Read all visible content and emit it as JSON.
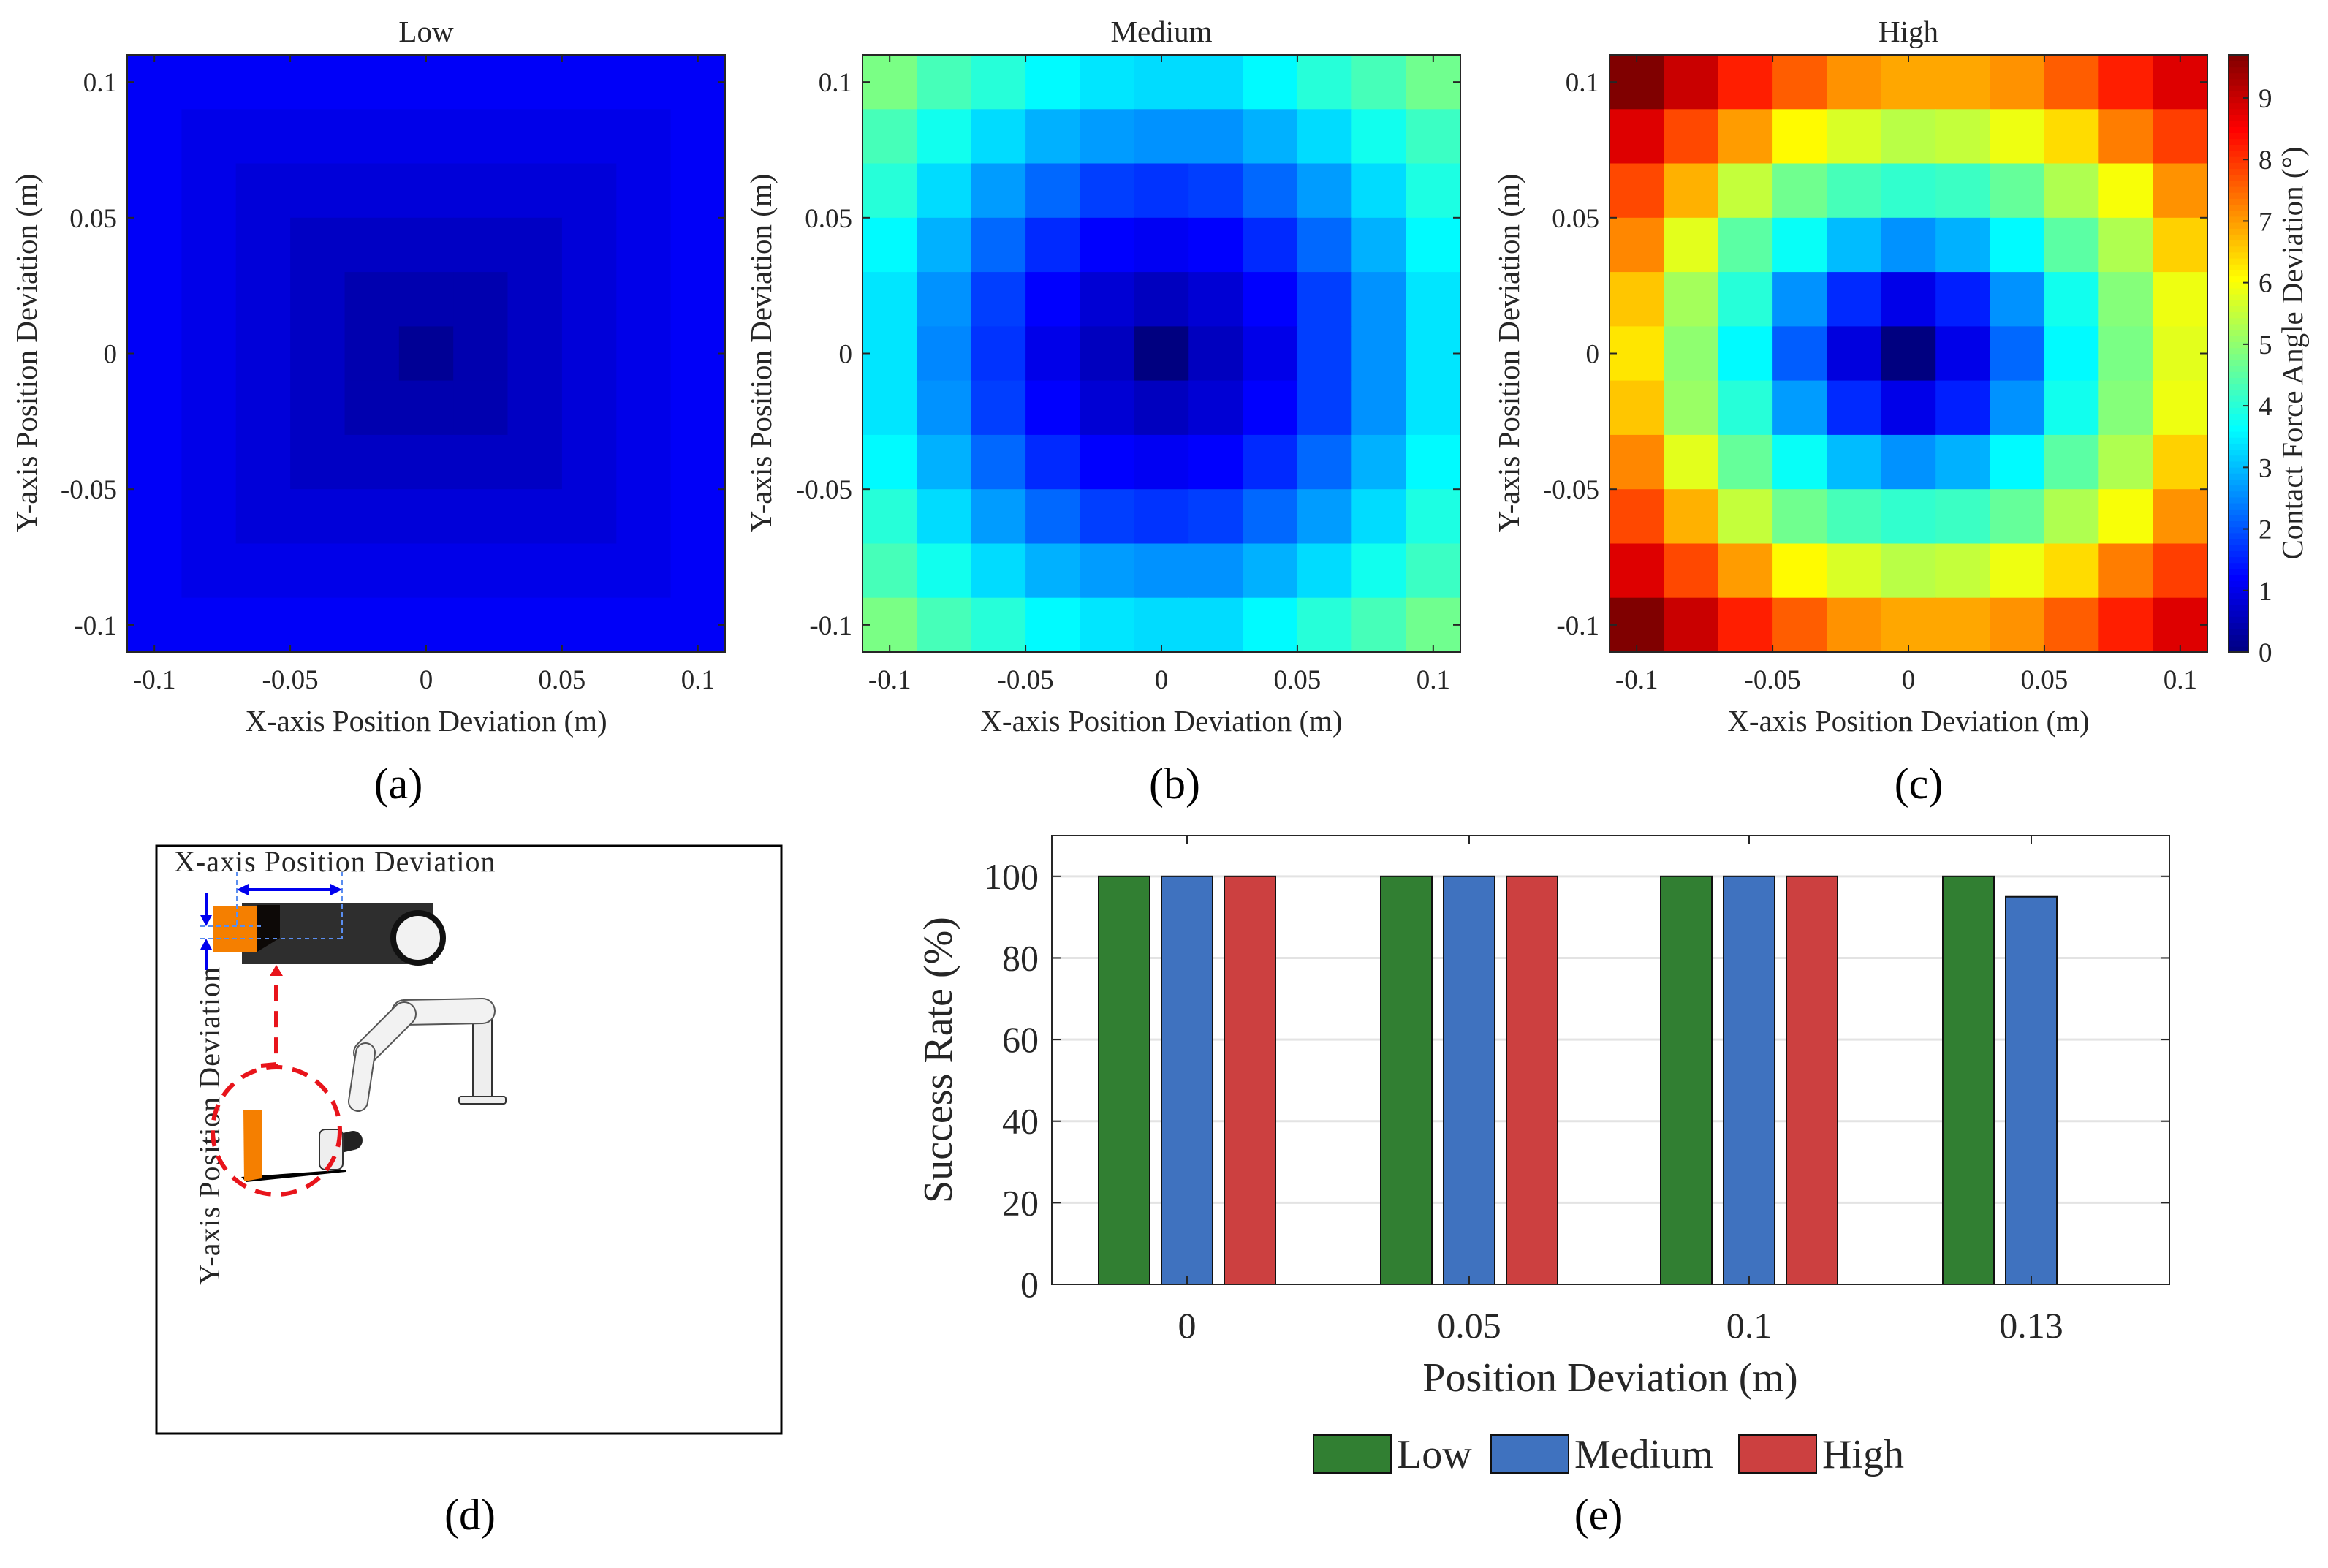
{
  "chart_data": [
    {
      "type": "heatmap",
      "panel_label": "(a)",
      "title": "Low",
      "xlabel": "X-axis Position Deviation (m)",
      "ylabel": "Y-axis Position Deviation (m)",
      "x": [
        -0.1,
        -0.08,
        -0.06,
        -0.04,
        -0.02,
        0,
        0.02,
        0.04,
        0.06,
        0.08,
        0.1
      ],
      "y": [
        0.1,
        0.08,
        0.06,
        0.04,
        0.02,
        0,
        -0.02,
        -0.04,
        -0.06,
        -0.08,
        -0.1
      ],
      "xticks": [
        "-0.1",
        "-0.05",
        "0",
        "0.05",
        "0.1"
      ],
      "yticks": [
        "0.1",
        "0.05",
        "0",
        "-0.05",
        "-0.1"
      ],
      "xlim": [
        -0.11,
        0.11
      ],
      "ylim": [
        -0.11,
        0.11
      ],
      "colormap": "jet",
      "clim": [
        0,
        9.7
      ],
      "values": [
        [
          1.15,
          1.15,
          1.15,
          1.15,
          1.15,
          1.15,
          1.15,
          1.15,
          1.15,
          1.15,
          1.15
        ],
        [
          1.15,
          1.0,
          1.0,
          1.0,
          1.0,
          1.0,
          1.0,
          1.0,
          1.0,
          1.0,
          1.15
        ],
        [
          1.15,
          1.0,
          0.85,
          0.85,
          0.85,
          0.85,
          0.85,
          0.85,
          0.85,
          1.0,
          1.15
        ],
        [
          1.15,
          1.0,
          0.85,
          0.65,
          0.65,
          0.65,
          0.65,
          0.65,
          0.85,
          1.0,
          1.15
        ],
        [
          1.15,
          1.0,
          0.85,
          0.65,
          0.45,
          0.45,
          0.45,
          0.65,
          0.85,
          1.0,
          1.15
        ],
        [
          1.15,
          1.0,
          0.85,
          0.65,
          0.45,
          0.2,
          0.45,
          0.65,
          0.85,
          1.0,
          1.15
        ],
        [
          1.15,
          1.0,
          0.85,
          0.65,
          0.45,
          0.45,
          0.45,
          0.65,
          0.85,
          1.0,
          1.15
        ],
        [
          1.15,
          1.0,
          0.85,
          0.65,
          0.65,
          0.65,
          0.65,
          0.65,
          0.85,
          1.0,
          1.15
        ],
        [
          1.15,
          1.0,
          0.85,
          0.85,
          0.85,
          0.85,
          0.85,
          0.85,
          0.85,
          1.0,
          1.15
        ],
        [
          1.15,
          1.0,
          1.0,
          1.0,
          1.0,
          1.0,
          1.0,
          1.0,
          1.0,
          1.0,
          1.15
        ],
        [
          1.15,
          1.15,
          1.15,
          1.15,
          1.15,
          1.15,
          1.15,
          1.15,
          1.15,
          1.15,
          1.15
        ]
      ]
    },
    {
      "type": "heatmap",
      "panel_label": "(b)",
      "title": "Medium",
      "xlabel": "X-axis Position Deviation (m)",
      "ylabel": "Y-axis Position Deviation (m)",
      "x": [
        -0.1,
        -0.08,
        -0.06,
        -0.04,
        -0.02,
        0,
        0.02,
        0.04,
        0.06,
        0.08,
        0.1
      ],
      "y": [
        0.1,
        0.08,
        0.06,
        0.04,
        0.02,
        0,
        -0.02,
        -0.04,
        -0.06,
        -0.08,
        -0.1
      ],
      "xticks": [
        "-0.1",
        "-0.05",
        "0",
        "0.05",
        "0.1"
      ],
      "yticks": [
        "0.1",
        "0.05",
        "0",
        "-0.05",
        "-0.1"
      ],
      "xlim": [
        -0.11,
        0.11
      ],
      "ylim": [
        -0.11,
        0.11
      ],
      "colormap": "jet",
      "clim": [
        0,
        9.7
      ],
      "values": [
        [
          4.8,
          4.3,
          4.0,
          3.6,
          3.4,
          3.3,
          3.3,
          3.6,
          4.0,
          4.3,
          4.7
        ],
        [
          4.3,
          3.8,
          3.3,
          2.9,
          2.7,
          2.6,
          2.6,
          2.9,
          3.3,
          3.8,
          4.2
        ],
        [
          4.0,
          3.3,
          2.7,
          2.2,
          1.8,
          1.7,
          1.8,
          2.2,
          2.7,
          3.3,
          3.9
        ],
        [
          3.6,
          2.9,
          2.2,
          1.6,
          1.2,
          1.1,
          1.2,
          1.6,
          2.2,
          2.9,
          3.6
        ],
        [
          3.4,
          2.6,
          1.8,
          1.2,
          0.8,
          0.6,
          0.8,
          1.2,
          1.8,
          2.6,
          3.4
        ],
        [
          3.4,
          2.5,
          1.7,
          1.0,
          0.6,
          0.0,
          0.6,
          1.0,
          1.8,
          2.6,
          3.4
        ],
        [
          3.4,
          2.6,
          1.8,
          1.2,
          0.8,
          0.6,
          0.8,
          1.2,
          1.8,
          2.6,
          3.4
        ],
        [
          3.6,
          2.9,
          2.2,
          1.6,
          1.2,
          1.1,
          1.2,
          1.6,
          2.2,
          2.9,
          3.6
        ],
        [
          4.0,
          3.3,
          2.7,
          2.2,
          1.8,
          1.7,
          1.8,
          2.2,
          2.7,
          3.3,
          3.9
        ],
        [
          4.3,
          3.8,
          3.3,
          2.9,
          2.7,
          2.6,
          2.6,
          2.9,
          3.3,
          3.8,
          4.2
        ],
        [
          4.8,
          4.3,
          4.0,
          3.6,
          3.4,
          3.3,
          3.3,
          3.6,
          4.0,
          4.3,
          4.7
        ]
      ]
    },
    {
      "type": "heatmap",
      "panel_label": "(c)",
      "title": "High",
      "xlabel": "X-axis Position Deviation (m)",
      "ylabel": "Y-axis Position Deviation (m)",
      "x": [
        -0.1,
        -0.08,
        -0.06,
        -0.04,
        -0.02,
        0,
        0.02,
        0.04,
        0.06,
        0.08,
        0.1
      ],
      "y": [
        0.1,
        0.08,
        0.06,
        0.04,
        0.02,
        0,
        -0.02,
        -0.04,
        -0.06,
        -0.08,
        -0.1
      ],
      "xticks": [
        "-0.1",
        "-0.05",
        "0",
        "0.05",
        "0.1"
      ],
      "yticks": [
        "0.1",
        "0.05",
        "0",
        "-0.05",
        "-0.1"
      ],
      "xlim": [
        -0.11,
        0.11
      ],
      "ylim": [
        -0.11,
        0.11
      ],
      "colormap": "jet",
      "clim": [
        0,
        9.7
      ],
      "colorbar": {
        "label": "Contact Force Angle Deviation (°)",
        "ticks": [
          "0",
          "1",
          "2",
          "3",
          "4",
          "5",
          "6",
          "7",
          "8",
          "9"
        ]
      },
      "values": [
        [
          9.7,
          9.0,
          8.2,
          7.6,
          7.1,
          6.9,
          6.9,
          7.1,
          7.6,
          8.2,
          8.8
        ],
        [
          8.8,
          7.8,
          7.0,
          6.1,
          5.7,
          5.4,
          5.5,
          5.9,
          6.4,
          7.3,
          7.9
        ],
        [
          7.8,
          6.8,
          5.5,
          4.7,
          4.3,
          4.1,
          4.2,
          4.6,
          5.3,
          6.0,
          7.1
        ],
        [
          7.2,
          5.8,
          4.5,
          3.7,
          3.0,
          2.6,
          2.9,
          3.6,
          4.5,
          5.3,
          6.5
        ],
        [
          6.6,
          5.2,
          4.0,
          2.6,
          1.6,
          1.0,
          1.5,
          2.6,
          3.8,
          4.9,
          5.9
        ],
        [
          6.3,
          5.0,
          3.6,
          2.1,
          0.9,
          0.0,
          1.0,
          2.2,
          3.6,
          4.8,
          5.8
        ],
        [
          6.6,
          5.1,
          4.0,
          2.7,
          1.6,
          1.0,
          1.5,
          2.6,
          3.8,
          4.9,
          5.9
        ],
        [
          7.2,
          5.8,
          4.6,
          3.7,
          3.0,
          2.6,
          2.9,
          3.6,
          4.5,
          5.3,
          6.5
        ],
        [
          7.8,
          6.8,
          5.5,
          4.7,
          4.3,
          4.1,
          4.2,
          4.6,
          5.3,
          6.0,
          7.1
        ],
        [
          8.8,
          7.8,
          7.0,
          6.1,
          5.7,
          5.4,
          5.5,
          5.9,
          6.4,
          7.3,
          7.9
        ],
        [
          9.7,
          9.0,
          8.2,
          7.6,
          7.1,
          6.9,
          6.9,
          7.1,
          7.6,
          8.2,
          8.8
        ]
      ]
    },
    {
      "type": "bar",
      "panel_label": "(e)",
      "categories": [
        "0",
        "0.05",
        "0.1",
        "0.13"
      ],
      "series": [
        {
          "name": "Low",
          "values": [
            100,
            100,
            100,
            100
          ],
          "color": "#317f32"
        },
        {
          "name": "Medium",
          "values": [
            100,
            100,
            100,
            95
          ],
          "color": "#3f72bf"
        },
        {
          "name": "High",
          "values": [
            100,
            100,
            100,
            null
          ],
          "color": "#cc4040"
        }
      ],
      "xlabel": "Position Deviation (m)",
      "ylabel": "Success Rate (%)",
      "ylim": [
        0,
        110
      ],
      "yticks": [
        "0",
        "20",
        "40",
        "60",
        "80",
        "100"
      ],
      "grid": true,
      "legend": "bottom"
    }
  ],
  "diagram": {
    "panel_label": "(d)",
    "x_label": "X-axis Position Deviation",
    "y_label": "Y-axis Position Deviation",
    "colors": {
      "object": "#f57f00",
      "arrow": "#0000ee",
      "dashed": "#5a8ef0",
      "highlight": "#e8141b"
    }
  }
}
